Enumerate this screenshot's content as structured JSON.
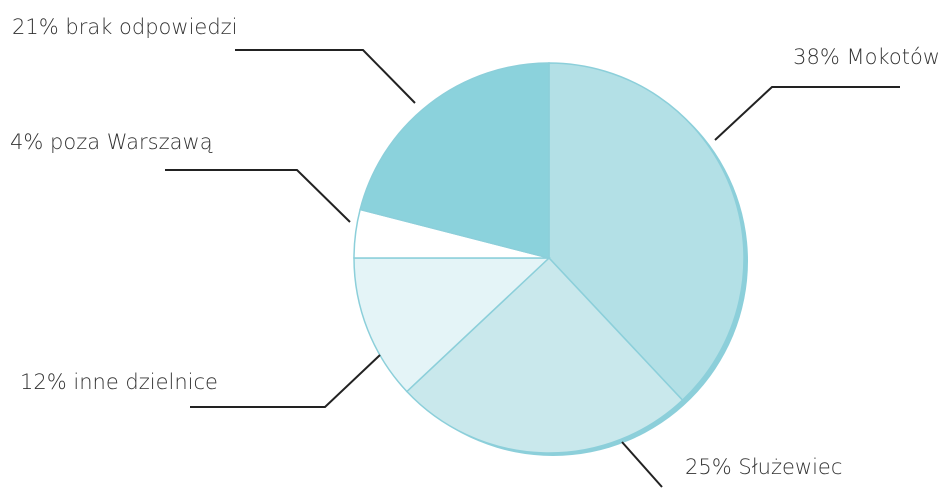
{
  "chart_data": {
    "type": "pie",
    "categories": [
      "Mokotów",
      "Służewiec",
      "inne dzielnice",
      "poza Warszawą",
      "brak odpowiedzi"
    ],
    "values": [
      38,
      25,
      12,
      4,
      21
    ],
    "value_labels": [
      "38%",
      "25%",
      "12%",
      "4%",
      "21%"
    ],
    "colors": [
      "#b3e0e6",
      "#c9e8ec",
      "#e4f4f7",
      "#ffffff",
      "#8bd2dc"
    ]
  }
}
